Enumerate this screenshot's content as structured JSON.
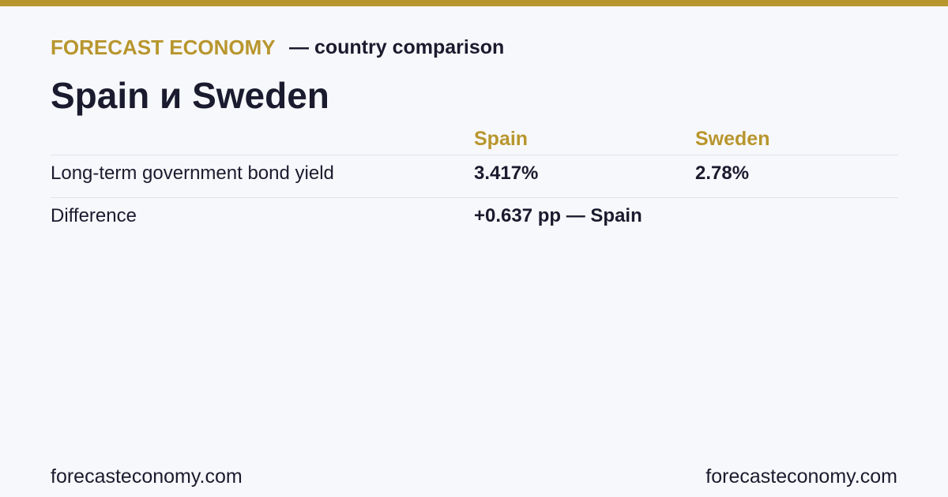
{
  "header": {
    "brand": "FORECAST ECONOMY",
    "subtitle": "— country comparison",
    "title": "Spain и Sweden"
  },
  "table": {
    "columns": [
      "Spain",
      "Sweden"
    ],
    "rows": [
      [
        "Long-term government bond yield",
        "3.417%",
        "2.78%"
      ],
      [
        "Difference",
        "+0.637 pp — Spain"
      ]
    ]
  },
  "footer": {
    "left": "forecasteconomy.com",
    "right": "forecasteconomy.com"
  }
}
